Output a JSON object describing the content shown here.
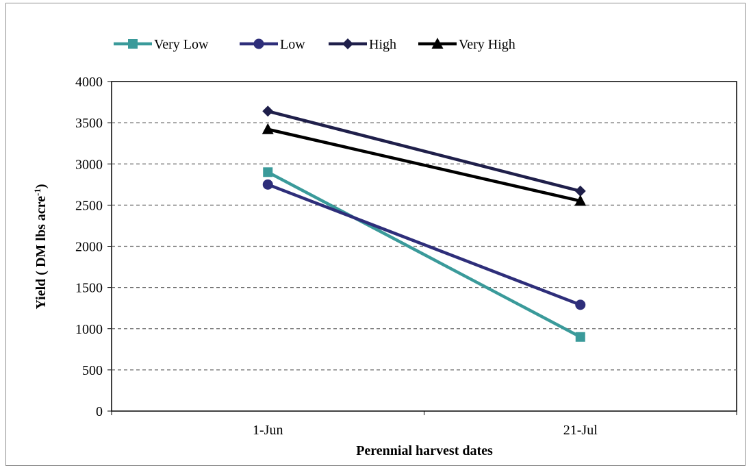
{
  "chart_data": {
    "type": "line",
    "title": "",
    "xlabel": "Perennial harvest dates",
    "ylabel": {
      "main": "Yield ( DM lbs acre",
      "superscript": "-1",
      "close": ")"
    },
    "categories": [
      "1-Jun",
      "21-Jul"
    ],
    "ylim": [
      0,
      4000
    ],
    "yticks": [
      0,
      500,
      1000,
      1500,
      2000,
      2500,
      3000,
      3500,
      4000
    ],
    "grid": "horizontal dashed",
    "legend_position": "top",
    "series": [
      {
        "name": "Very Low",
        "values": [
          2900,
          900
        ],
        "color": "#3a9a9a",
        "marker": "square"
      },
      {
        "name": "Low",
        "values": [
          2750,
          1290
        ],
        "color": "#2e2e7a",
        "marker": "circle"
      },
      {
        "name": "High",
        "values": [
          3640,
          2670
        ],
        "color": "#1f1f4a",
        "marker": "diamond"
      },
      {
        "name": "Very High",
        "values": [
          3420,
          2550
        ],
        "color": "#000000",
        "marker": "triangle"
      }
    ]
  }
}
